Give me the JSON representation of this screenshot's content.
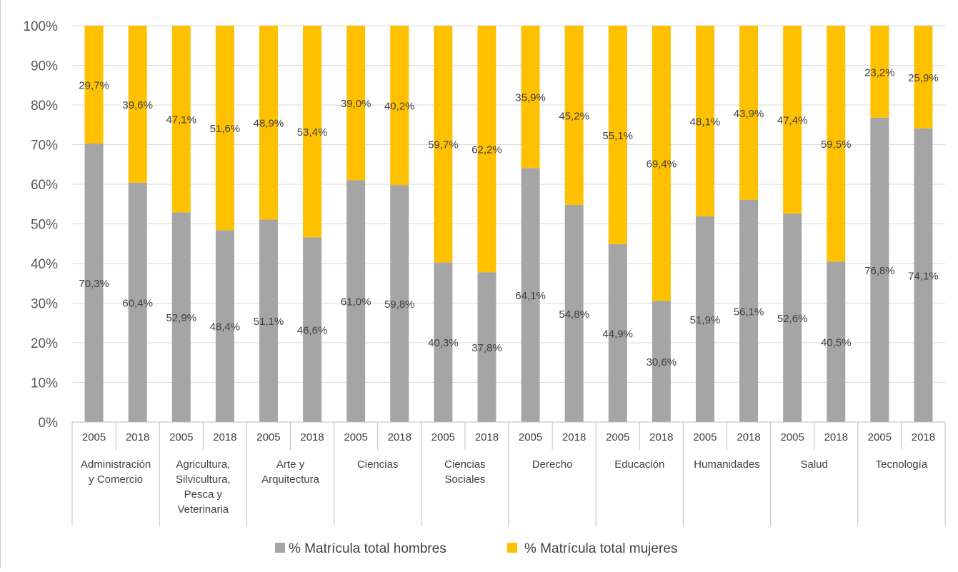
{
  "caption_fragment": "",
  "chart_data": {
    "type": "bar",
    "stacked": true,
    "grid": true,
    "ylim": [
      0,
      100
    ],
    "y_ticks": [
      "0%",
      "10%",
      "20%",
      "30%",
      "40%",
      "50%",
      "60%",
      "70%",
      "80%",
      "90%",
      "100%"
    ],
    "groups": [
      {
        "name": "Administración y Comercio",
        "lines": [
          "Administración",
          "y Comercio"
        ]
      },
      {
        "name": "Agricultura, Silvicultura, Pesca y Veterinaria",
        "lines": [
          "Agricultura,",
          "Silvicultura,",
          "Pesca y",
          "Veterinaria"
        ]
      },
      {
        "name": "Arte y Arquitectura",
        "lines": [
          "Arte y",
          "Arquitectura"
        ]
      },
      {
        "name": "Ciencias",
        "lines": [
          "Ciencias"
        ]
      },
      {
        "name": "Ciencias Sociales",
        "lines": [
          "Ciencias",
          "Sociales"
        ]
      },
      {
        "name": "Derecho",
        "lines": [
          "Derecho"
        ]
      },
      {
        "name": "Educación",
        "lines": [
          "Educación"
        ]
      },
      {
        "name": "Humanidades",
        "lines": [
          "Humanidades"
        ]
      },
      {
        "name": "Salud",
        "lines": [
          "Salud"
        ]
      },
      {
        "name": "Tecnología",
        "lines": [
          "Tecnología"
        ]
      }
    ],
    "years": [
      "2005",
      "2018"
    ],
    "series": [
      {
        "name": "% Matrícula total hombres",
        "color": "#a5a5a5",
        "values": [
          70.3,
          60.4,
          52.9,
          48.4,
          51.1,
          46.6,
          61.0,
          59.8,
          40.3,
          37.8,
          64.1,
          54.8,
          44.9,
          30.6,
          51.9,
          56.1,
          52.6,
          40.5,
          76.8,
          74.1
        ],
        "labels": [
          "70,3%",
          "60,4%",
          "52,9%",
          "48,4%",
          "51,1%",
          "46,6%",
          "61,0%",
          "59,8%",
          "40,3%",
          "37,8%",
          "64,1%",
          "54,8%",
          "44,9%",
          "30,6%",
          "51,9%",
          "56,1%",
          "52,6%",
          "40,5%",
          "76,8%",
          "74,1%"
        ]
      },
      {
        "name": "% Matrícula total mujeres",
        "color": "#ffc000",
        "values": [
          29.7,
          39.6,
          47.1,
          51.6,
          48.9,
          53.4,
          39.0,
          40.2,
          59.7,
          62.2,
          35.9,
          45.2,
          55.1,
          69.4,
          48.1,
          43.9,
          47.4,
          59.5,
          23.2,
          25.9
        ],
        "labels": [
          "29,7%",
          "39,6%",
          "47,1%",
          "51,6%",
          "48,9%",
          "53,4%",
          "39,0%",
          "40,2%",
          "59,7%",
          "62,2%",
          "35,9%",
          "45,2%",
          "55,1%",
          "69,4%",
          "48,1%",
          "43,9%",
          "47,4%",
          "59,5%",
          "23,2%",
          "25,9%"
        ]
      }
    ],
    "legend_position": "bottom"
  }
}
